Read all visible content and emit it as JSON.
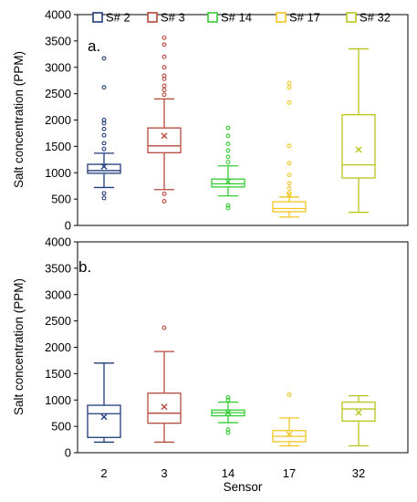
{
  "chart_data": [
    {
      "type": "box",
      "panel_label": "a.",
      "ylabel": "Salt concentration (PPM)",
      "xlabel": "",
      "ylim": [
        0,
        4000
      ],
      "yticks": [
        0,
        500,
        1000,
        1500,
        2000,
        2500,
        3000,
        3500,
        4000
      ],
      "categories": [
        "2",
        "3",
        "14",
        "17",
        "32"
      ],
      "legend": {
        "placement": "top",
        "entries": [
          "S# 2",
          "S# 3",
          "S# 14",
          "S# 17",
          "S# 32"
        ]
      },
      "series": [
        {
          "name": "S# 2",
          "color": "#1f3a7a",
          "whisker_low": 720,
          "q1": 990,
          "median": 1040,
          "q3": 1160,
          "whisker_high": 1370,
          "mean": 1120,
          "outliers": [
            520,
            610,
            1450,
            1560,
            1710,
            1830,
            1940,
            2000,
            2620,
            3170
          ]
        },
        {
          "name": "S# 3",
          "color": "#b5473a",
          "whisker_low": 680,
          "q1": 1380,
          "median": 1510,
          "q3": 1850,
          "whisker_high": 2400,
          "mean": 1700,
          "outliers": [
            460,
            600,
            2480,
            2570,
            2650,
            2780,
            2840,
            3000,
            3200,
            3430,
            3560
          ]
        },
        {
          "name": "S# 14",
          "color": "#33cc33",
          "whisker_low": 560,
          "q1": 730,
          "median": 790,
          "q3": 880,
          "whisker_high": 1130,
          "mean": 830,
          "outliers": [
            330,
            380,
            1200,
            1300,
            1420,
            1550,
            1700,
            1850
          ]
        },
        {
          "name": "S# 17",
          "color": "#f2c523",
          "whisker_low": 160,
          "q1": 260,
          "median": 320,
          "q3": 450,
          "whisker_high": 540,
          "mean": 580,
          "outliers": [
            610,
            700,
            800,
            960,
            1180,
            1510,
            2330,
            2620,
            2700
          ]
        },
        {
          "name": "S# 32",
          "color": "#b8c41c",
          "whisker_low": 250,
          "q1": 900,
          "median": 1150,
          "q3": 2100,
          "whisker_high": 3350,
          "mean": 1440,
          "outliers": []
        }
      ]
    },
    {
      "type": "box",
      "panel_label": "b.",
      "ylabel": "Salt concentration (PPM)",
      "xlabel": "Sensor",
      "ylim": [
        0,
        4000
      ],
      "yticks": [
        0,
        500,
        1000,
        1500,
        2000,
        2500,
        3000,
        3500,
        4000
      ],
      "categories": [
        "2",
        "3",
        "14",
        "17",
        "32"
      ],
      "series": [
        {
          "name": "S# 2",
          "color": "#1f3a7a",
          "whisker_low": 200,
          "q1": 290,
          "median": 740,
          "q3": 900,
          "whisker_high": 1700,
          "mean": 680,
          "outliers": []
        },
        {
          "name": "S# 3",
          "color": "#b5473a",
          "whisker_low": 200,
          "q1": 560,
          "median": 750,
          "q3": 1130,
          "whisker_high": 1920,
          "mean": 870,
          "outliers": [
            2370
          ]
        },
        {
          "name": "S# 14",
          "color": "#33cc33",
          "whisker_low": 570,
          "q1": 700,
          "median": 760,
          "q3": 810,
          "whisker_high": 960,
          "mean": 760,
          "outliers": [
            380,
            440,
            1000,
            1050
          ]
        },
        {
          "name": "S# 17",
          "color": "#f2c523",
          "whisker_low": 130,
          "q1": 210,
          "median": 310,
          "q3": 420,
          "whisker_high": 660,
          "mean": 350,
          "outliers": [
            1100
          ]
        },
        {
          "name": "S# 32",
          "color": "#b8c41c",
          "whisker_low": 130,
          "q1": 600,
          "median": 830,
          "q3": 960,
          "whisker_high": 1080,
          "mean": 760,
          "outliers": []
        }
      ]
    }
  ]
}
